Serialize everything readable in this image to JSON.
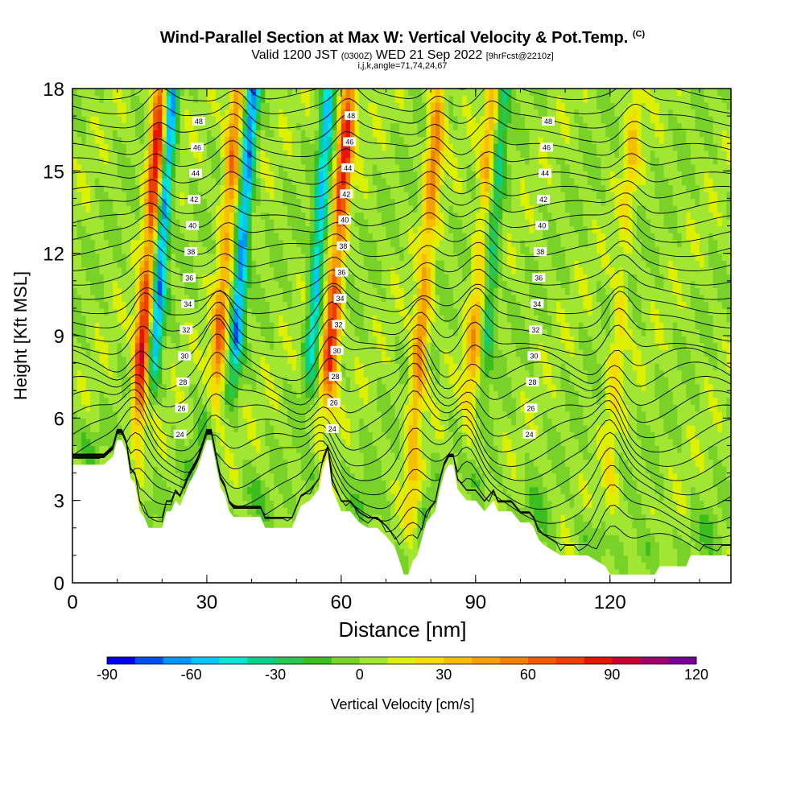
{
  "titles": {
    "main": "Wind-Parallel Section at Max W: Vertical Velocity & Pot.Temp.",
    "copyright": "(C)",
    "valid_prefix": "Valid 1200 JST",
    "valid_utc": "(0300Z)",
    "valid_date": "WED 21 Sep 2022",
    "forecast": "[9hrFcst@2210z]",
    "params": "i,j,k,angle=71,74,24,67"
  },
  "chart_data": {
    "type": "heatmap",
    "xlabel": "Distance [nm]",
    "ylabel": "Height [Kft MSL]",
    "xlim": [
      0,
      147
    ],
    "ylim": [
      0,
      18
    ],
    "x_ticks": [
      "0",
      "30",
      "60",
      "90",
      "120"
    ],
    "y_ticks": [
      "0",
      "3",
      "6",
      "9",
      "12",
      "15",
      "18"
    ],
    "colorbar": {
      "label": "Vertical Velocity [cm/s]",
      "range": [
        -90,
        120
      ],
      "tick_labels": [
        "-90",
        "-60",
        "-30",
        "0",
        "30",
        "60",
        "90",
        "120"
      ],
      "colors": [
        "#0000f0",
        "#0050f0",
        "#0096f5",
        "#00c8ff",
        "#00e6d2",
        "#00d28c",
        "#28c850",
        "#3cbe1e",
        "#78d228",
        "#a0e632",
        "#dcf000",
        "#f5dc00",
        "#f5be00",
        "#f5a000",
        "#f08200",
        "#f05a00",
        "#f03c00",
        "#e61400",
        "#c80032",
        "#a0006e",
        "#780096"
      ]
    },
    "theta_contour_labels": [
      "24",
      "26",
      "28",
      "30",
      "32",
      "34",
      "36",
      "38",
      "40",
      "42",
      "44",
      "46",
      "48"
    ],
    "updrafts": [
      {
        "x": 14,
        "max_cm_s": 95
      },
      {
        "x": 31,
        "max_cm_s": 60
      },
      {
        "x": 56,
        "max_cm_s": 90
      },
      {
        "x": 76,
        "max_cm_s": 55
      },
      {
        "x": 88,
        "max_cm_s": 40
      },
      {
        "x": 120,
        "max_cm_s": 25
      }
    ],
    "downdrafts": [
      {
        "x": 17,
        "min_cm_s": -70
      },
      {
        "x": 35,
        "min_cm_s": -70
      },
      {
        "x": 52,
        "min_cm_s": -55
      },
      {
        "x": 91,
        "min_cm_s": -35
      }
    ],
    "terrain_kft": [
      [
        0,
        4.3
      ],
      [
        7,
        4.3
      ],
      [
        9,
        4.6
      ],
      [
        10,
        5.2
      ],
      [
        11,
        5.2
      ],
      [
        12,
        4.8
      ],
      [
        13,
        3.8
      ],
      [
        14,
        3.6
      ],
      [
        15,
        2.6
      ],
      [
        16,
        2.4
      ],
      [
        17,
        2.0
      ],
      [
        20,
        2.0
      ],
      [
        21,
        2.6
      ],
      [
        22,
        2.6
      ],
      [
        23,
        3.0
      ],
      [
        24,
        2.8
      ],
      [
        26,
        3.6
      ],
      [
        28,
        4.2
      ],
      [
        30,
        5.2
      ],
      [
        31,
        5.2
      ],
      [
        33,
        3.5
      ],
      [
        34,
        3.2
      ],
      [
        35,
        2.6
      ],
      [
        36,
        2.4
      ],
      [
        42,
        2.4
      ],
      [
        43,
        2.0
      ],
      [
        49,
        2.0
      ],
      [
        50,
        2.4
      ],
      [
        51,
        2.8
      ],
      [
        53,
        3.0
      ],
      [
        55,
        3.4
      ],
      [
        56,
        4.2
      ],
      [
        57,
        4.6
      ],
      [
        58,
        3.4
      ],
      [
        59,
        3.0
      ],
      [
        60,
        2.6
      ],
      [
        62,
        2.6
      ],
      [
        63,
        2.4
      ],
      [
        64,
        2.2
      ],
      [
        66,
        2.0
      ],
      [
        68,
        2.0
      ],
      [
        70,
        1.7
      ],
      [
        72,
        1.3
      ],
      [
        73,
        0.8
      ],
      [
        74,
        0.3
      ],
      [
        75,
        0.3
      ],
      [
        76,
        0.8
      ],
      [
        77,
        1.0
      ],
      [
        78,
        1.6
      ],
      [
        79,
        2.2
      ],
      [
        81,
        2.6
      ],
      [
        82,
        3.4
      ],
      [
        83,
        4.0
      ],
      [
        84,
        4.3
      ],
      [
        85,
        4.3
      ],
      [
        86,
        3.4
      ],
      [
        87,
        3.2
      ],
      [
        88,
        3.0
      ],
      [
        90,
        3.0
      ],
      [
        91,
        2.8
      ],
      [
        92,
        2.6
      ],
      [
        93,
        2.8
      ],
      [
        94,
        3.0
      ],
      [
        95,
        2.6
      ],
      [
        96,
        2.6
      ],
      [
        97,
        2.6
      ],
      [
        98,
        2.6
      ],
      [
        99,
        2.4
      ],
      [
        100,
        2.2
      ],
      [
        102,
        2.2
      ],
      [
        103,
        2.0
      ],
      [
        104,
        1.6
      ],
      [
        105,
        1.4
      ],
      [
        107,
        1.2
      ],
      [
        109,
        1.0
      ],
      [
        115,
        1.0
      ],
      [
        119,
        0.6
      ],
      [
        120,
        0.3
      ],
      [
        130,
        0.3
      ],
      [
        131,
        0.6
      ],
      [
        137,
        0.6
      ],
      [
        138,
        1.0
      ],
      [
        147,
        1.0
      ]
    ],
    "terrain_color": "#ffffff"
  }
}
